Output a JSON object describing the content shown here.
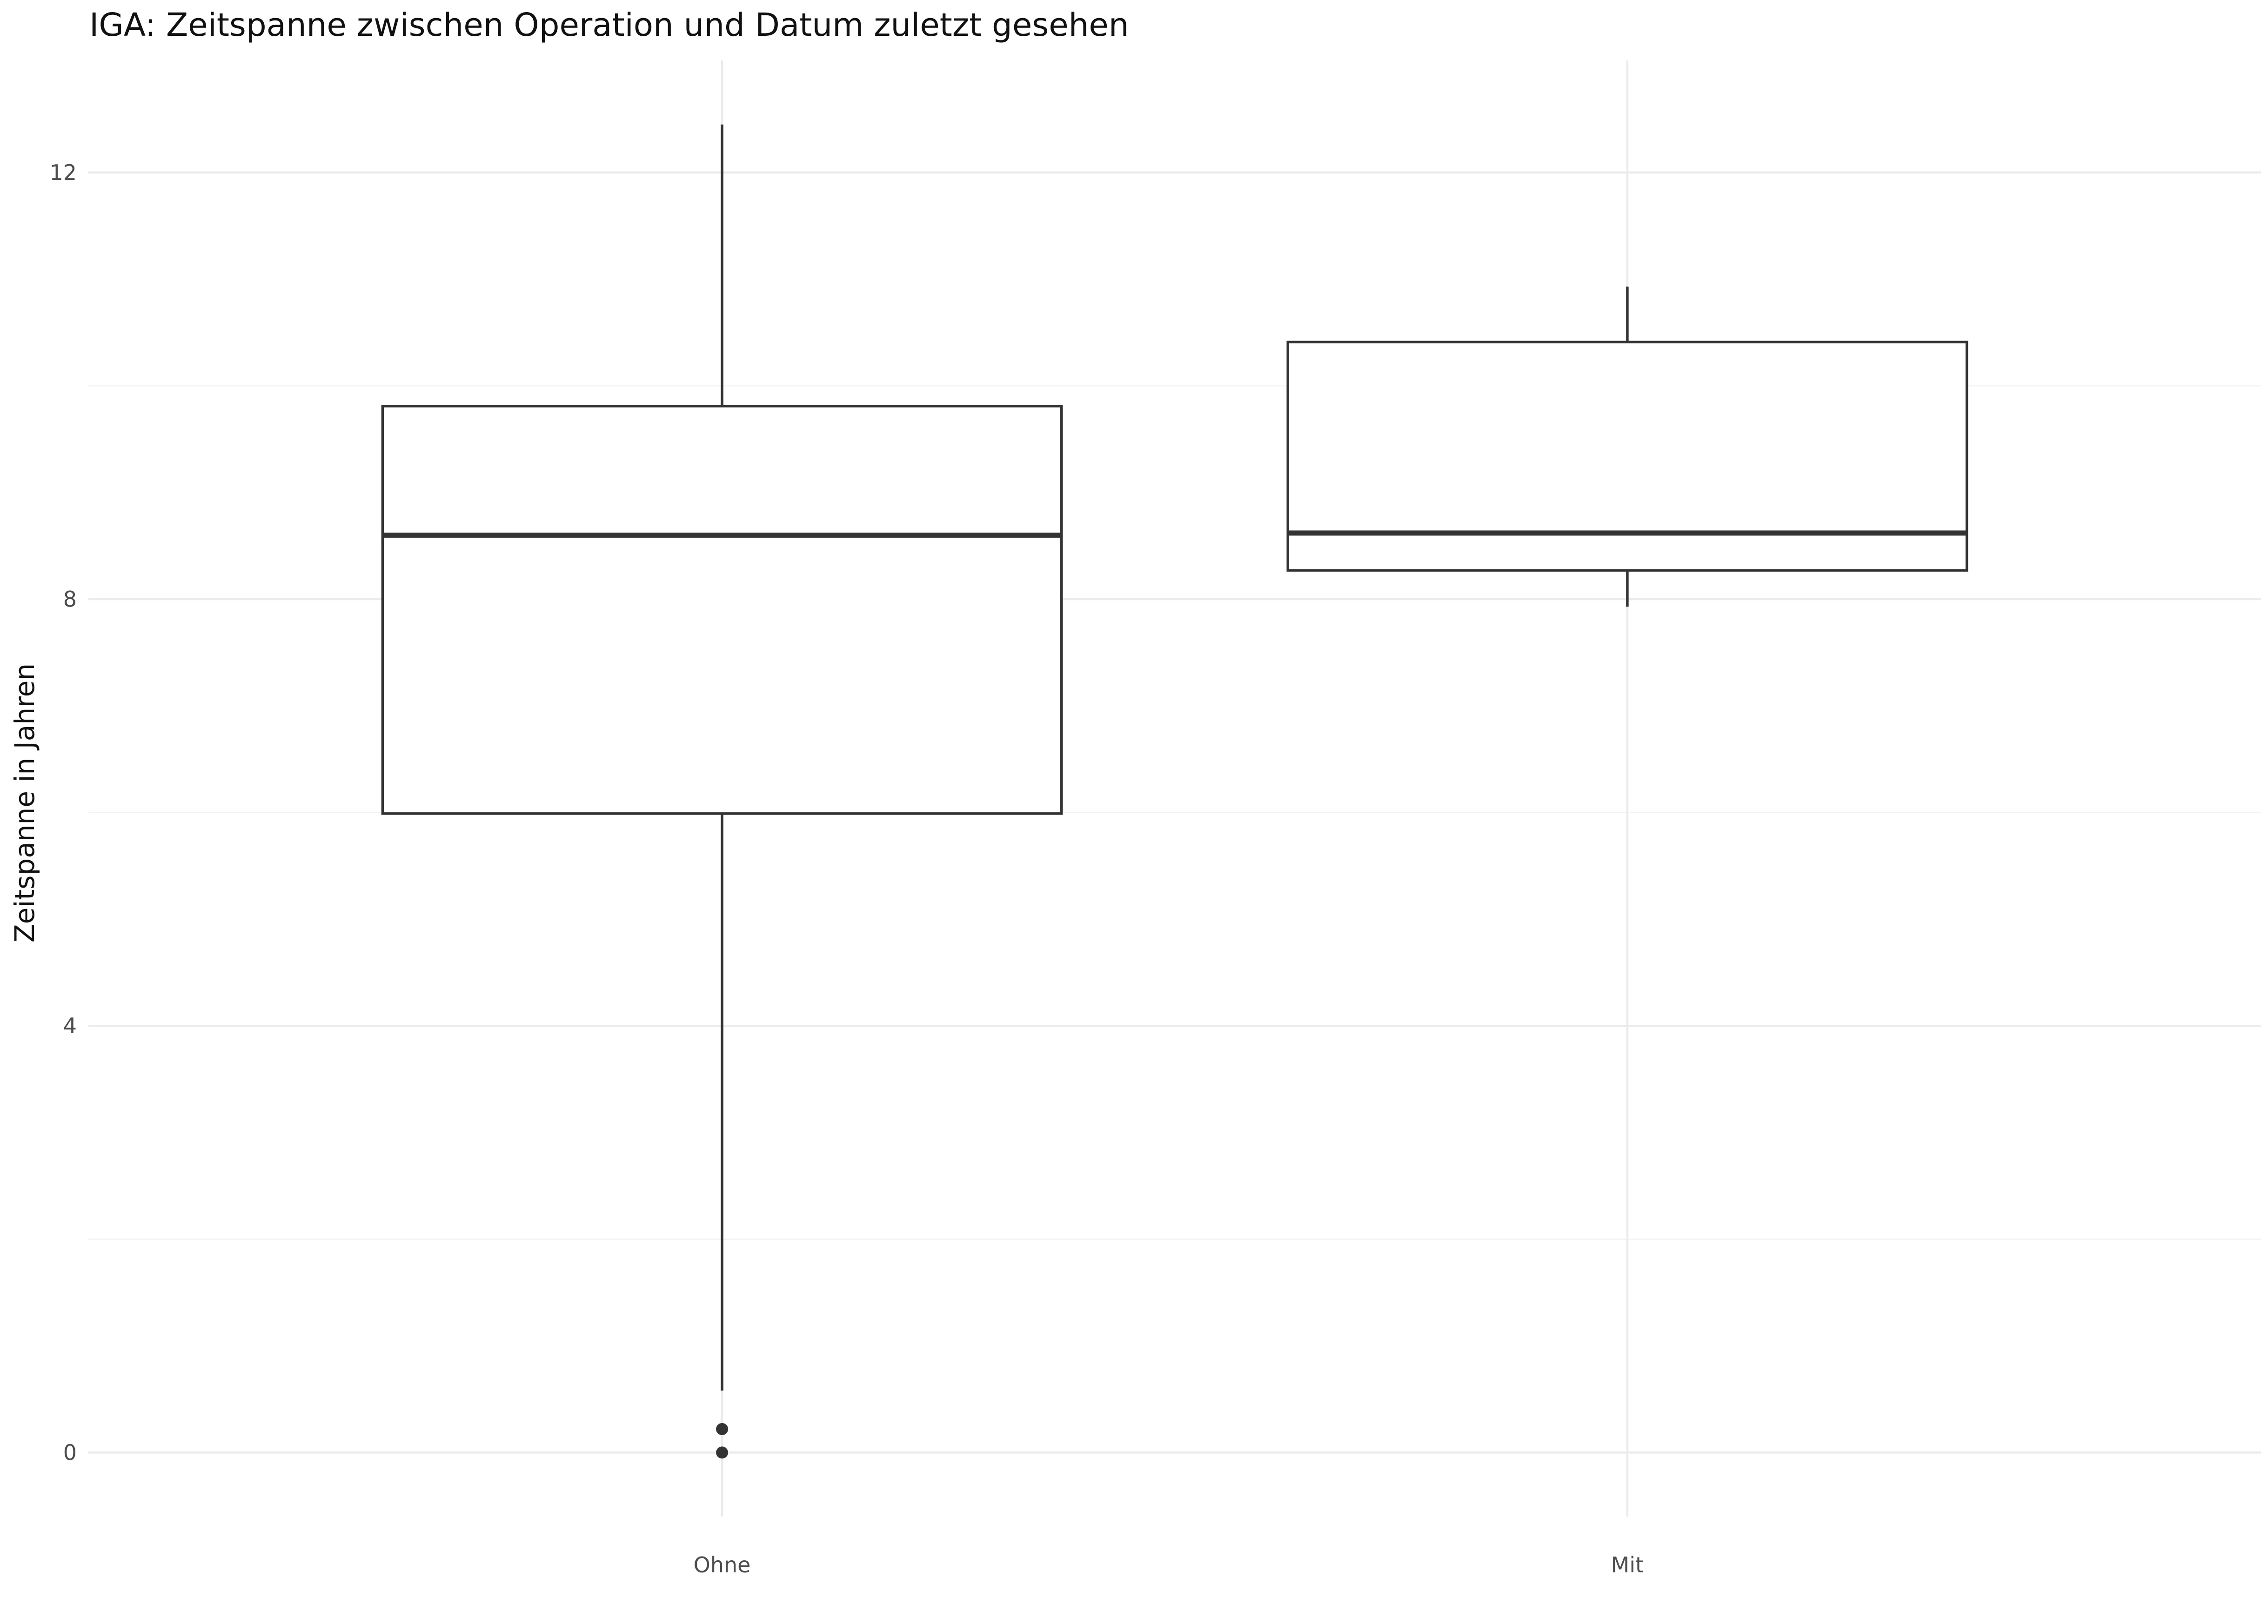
{
  "chart_data": {
    "type": "boxplot",
    "title": "IGA: Zeitspanne zwischen Operation und Datum zuletzt gesehen",
    "xlabel": "",
    "ylabel": "Zeitspanne in Jahren",
    "categories": [
      "Ohne",
      "Mit"
    ],
    "ylim": [
      -0.6,
      13.05
    ],
    "yticks": [
      0,
      4,
      8,
      12
    ],
    "ytick_labels": [
      "0",
      "4",
      "8",
      "12"
    ],
    "minor_yticks": [
      2,
      6,
      10
    ],
    "grid": true,
    "legend": "none",
    "boxes": [
      {
        "category": "Ohne",
        "whisker_low": 0.58,
        "q1": 5.99,
        "median": 8.6,
        "q3": 9.81,
        "whisker_high": 12.45,
        "outliers": [
          0.0,
          0.22
        ]
      },
      {
        "category": "Mit",
        "whisker_low": 7.93,
        "q1": 8.27,
        "median": 8.62,
        "q3": 10.41,
        "whisker_high": 10.93,
        "outliers": []
      }
    ]
  },
  "colors": {
    "box_stroke": "#333333",
    "box_fill": "#ffffff",
    "grid_major": "#ebebeb",
    "grid_minor": "#f3f3f3",
    "tick_text": "#4d4d4d",
    "title_text": "#111111"
  }
}
